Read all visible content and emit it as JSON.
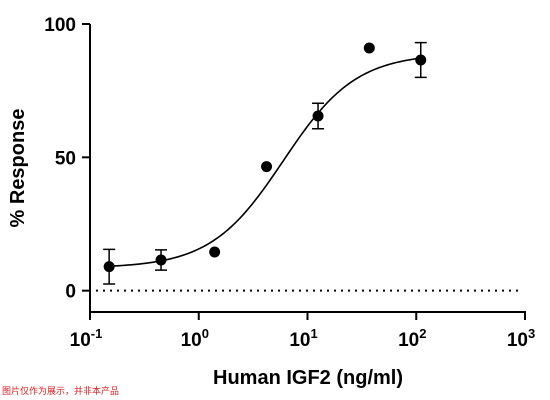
{
  "chart_data": {
    "type": "scatter",
    "xlabel": "Human IGF2 (ng/ml)",
    "ylabel": "% Response",
    "x_scale": "log10",
    "xlim": [
      0.1,
      1000
    ],
    "ylim": [
      -8,
      100
    ],
    "x_ticks": [
      {
        "value": 0.1,
        "base": "10",
        "exp": "-1"
      },
      {
        "value": 1,
        "base": "10",
        "exp": "0"
      },
      {
        "value": 10,
        "base": "10",
        "exp": "1"
      },
      {
        "value": 100,
        "base": "10",
        "exp": "2"
      },
      {
        "value": 1000,
        "base": "10",
        "exp": "3"
      }
    ],
    "y_ticks": [
      {
        "value": 0,
        "label": "0"
      },
      {
        "value": 50,
        "label": "50"
      },
      {
        "value": 100,
        "label": "100"
      }
    ],
    "points": [
      {
        "x": 0.15,
        "y": 9,
        "err": 6.5
      },
      {
        "x": 0.45,
        "y": 11.5,
        "err": 3.8
      },
      {
        "x": 1.4,
        "y": 14.5,
        "err": 0
      },
      {
        "x": 4.2,
        "y": 46.5,
        "err": 0
      },
      {
        "x": 12.5,
        "y": 65.5,
        "err": 4.8
      },
      {
        "x": 37,
        "y": 91,
        "err": 0
      },
      {
        "x": 110,
        "y": 86.5,
        "err": 6.5
      }
    ],
    "fit": {
      "model": "4PL",
      "bottom": 8.5,
      "top": 89,
      "ec50": 6,
      "hill": 1.3
    },
    "baseline_y": 0,
    "grid": false,
    "legend": "none"
  },
  "footnote": "图片仅作为展示，并非本产品"
}
